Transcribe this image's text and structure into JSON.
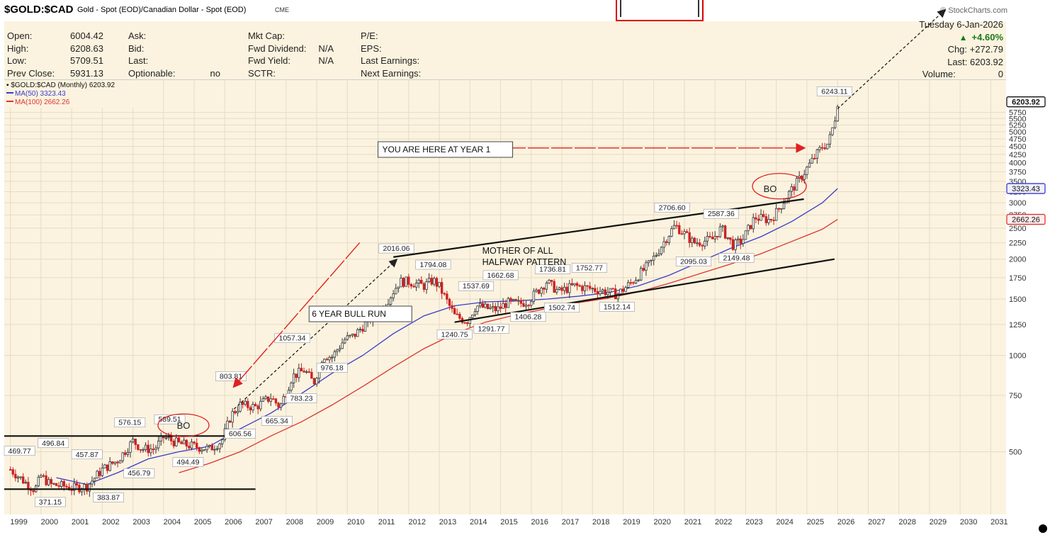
{
  "header": {
    "symbol": "$GOLD:$CAD",
    "description": "Gold - Spot (EOD)/Canadian Dollar - Spot (EOD)",
    "exchange": "CME",
    "brand": "© StockCharts.com"
  },
  "info_panel": {
    "col1_labels": [
      "Open:",
      "High:",
      "Low:",
      "Prev Close:"
    ],
    "col1_values": [
      "6004.42",
      "6208.63",
      "5709.51",
      "5931.13"
    ],
    "col2_labels": [
      "Ask:",
      "Bid:",
      "Last:",
      "Optionable:"
    ],
    "col2_values": [
      "",
      "",
      "",
      "no"
    ],
    "col3_labels": [
      "Mkt Cap:",
      "Fwd Dividend:",
      "Fwd Yield:",
      "SCTR:"
    ],
    "col3_values": [
      "",
      "N/A",
      "N/A",
      ""
    ],
    "col4_labels": [
      "P/E:",
      "EPS:",
      "Last Earnings:",
      "Next Earnings:"
    ],
    "date": "Tuesday  6-Jan-2026",
    "change_pct": "+4.60%",
    "chg": "Chg: +272.79",
    "last": "Last: 6203.92",
    "volume_label": "Volume:",
    "volume": "0"
  },
  "legend": {
    "main": "$GOLD:$CAD (Monthly) 6203.92",
    "ma50": "MA(50) 3323.43",
    "ma100": "MA(100) 2662.26"
  },
  "colors": {
    "up": "#333333",
    "down": "#cc2222",
    "ma50": "#3a3acc",
    "ma100": "#dd3333",
    "plot_bg": "#fbf3df",
    "accent_red": "#e02020"
  },
  "chart_data": {
    "type": "candlestick",
    "title": "$GOLD:$CAD (Monthly)",
    "scale": "log",
    "ylim": [
      325,
      7000
    ],
    "xlim": [
      1998.8,
      2031.5
    ],
    "y_ticks": [
      500,
      750,
      1000,
      1250,
      1500,
      1750,
      2000,
      2250,
      2500,
      2750,
      3000,
      3250,
      3500,
      3750,
      4000,
      4250,
      4500,
      4750,
      5000,
      5250,
      5500,
      5750
    ],
    "x_ticks": [
      "1999",
      "2000",
      "2001",
      "2002",
      "2003",
      "2004",
      "2005",
      "2006",
      "2007",
      "2008",
      "2009",
      "2010",
      "2011",
      "2012",
      "2013",
      "2014",
      "2015",
      "2016",
      "2017",
      "2018",
      "2019",
      "2020",
      "2021",
      "2022",
      "2023",
      "2024",
      "2025",
      "2026",
      "2027",
      "2028",
      "2029",
      "2030",
      "2031"
    ],
    "price_path": [
      [
        1999.0,
        440
      ],
      [
        1999.5,
        400
      ],
      [
        1999.8,
        380
      ],
      [
        2000.0,
        420
      ],
      [
        2000.3,
        395
      ],
      [
        2000.8,
        390
      ],
      [
        2001.0,
        385
      ],
      [
        2001.5,
        390
      ],
      [
        2002.0,
        440
      ],
      [
        2002.5,
        470
      ],
      [
        2003.0,
        540
      ],
      [
        2003.3,
        510
      ],
      [
        2003.7,
        510
      ],
      [
        2004.0,
        555
      ],
      [
        2004.5,
        530
      ],
      [
        2005.0,
        520
      ],
      [
        2005.5,
        510
      ],
      [
        2005.9,
        540
      ],
      [
        2006.2,
        650
      ],
      [
        2006.5,
        700
      ],
      [
        2007.0,
        690
      ],
      [
        2007.5,
        740
      ],
      [
        2007.8,
        690
      ],
      [
        2008.2,
        860
      ],
      [
        2008.6,
        900
      ],
      [
        2008.9,
        820
      ],
      [
        2009.2,
        1000
      ],
      [
        2009.5,
        990
      ],
      [
        2009.9,
        1120
      ],
      [
        2010.2,
        1150
      ],
      [
        2010.6,
        1260
      ],
      [
        2011.0,
        1370
      ],
      [
        2011.3,
        1480
      ],
      [
        2011.7,
        1700
      ],
      [
        2012.0,
        1700
      ],
      [
        2012.5,
        1650
      ],
      [
        2012.8,
        1720
      ],
      [
        2013.0,
        1640
      ],
      [
        2013.5,
        1330
      ],
      [
        2013.9,
        1280
      ],
      [
        2014.2,
        1430
      ],
      [
        2014.6,
        1400
      ],
      [
        2014.9,
        1390
      ],
      [
        2015.2,
        1460
      ],
      [
        2015.6,
        1450
      ],
      [
        2015.9,
        1480
      ],
      [
        2016.5,
        1700
      ],
      [
        2016.9,
        1580
      ],
      [
        2017.4,
        1650
      ],
      [
        2017.9,
        1620
      ],
      [
        2018.5,
        1580
      ],
      [
        2018.8,
        1550
      ],
      [
        2019.3,
        1700
      ],
      [
        2019.9,
        1950
      ],
      [
        2020.5,
        2400
      ],
      [
        2020.7,
        2550
      ],
      [
        2021.0,
        2400
      ],
      [
        2021.3,
        2250
      ],
      [
        2021.9,
        2300
      ],
      [
        2022.2,
        2500
      ],
      [
        2022.6,
        2200
      ],
      [
        2022.9,
        2300
      ],
      [
        2023.3,
        2700
      ],
      [
        2023.8,
        2650
      ],
      [
        2024.0,
        2800
      ],
      [
        2024.4,
        3200
      ],
      [
        2024.8,
        3600
      ],
      [
        2025.2,
        4100
      ],
      [
        2025.5,
        4500
      ],
      [
        2025.7,
        4600
      ],
      [
        2025.9,
        5400
      ],
      [
        2026.0,
        6203.92
      ]
    ],
    "ma50_path": [
      [
        2000.5,
        415
      ],
      [
        2001.5,
        395
      ],
      [
        2002.5,
        430
      ],
      [
        2003.5,
        475
      ],
      [
        2004.5,
        500
      ],
      [
        2005.5,
        520
      ],
      [
        2006.5,
        590
      ],
      [
        2007.5,
        660
      ],
      [
        2008.5,
        760
      ],
      [
        2009.5,
        880
      ],
      [
        2010.5,
        1000
      ],
      [
        2011.5,
        1170
      ],
      [
        2012.5,
        1330
      ],
      [
        2013.5,
        1430
      ],
      [
        2014.5,
        1470
      ],
      [
        2015.5,
        1480
      ],
      [
        2016.5,
        1500
      ],
      [
        2017.5,
        1530
      ],
      [
        2018.5,
        1570
      ],
      [
        2019.5,
        1650
      ],
      [
        2020.5,
        1780
      ],
      [
        2021.5,
        1960
      ],
      [
        2022.5,
        2160
      ],
      [
        2023.5,
        2350
      ],
      [
        2024.5,
        2620
      ],
      [
        2025.5,
        3000
      ],
      [
        2026.0,
        3323.43
      ]
    ],
    "ma100_path": [
      [
        2004.5,
        430
      ],
      [
        2005.5,
        460
      ],
      [
        2006.5,
        500
      ],
      [
        2007.5,
        560
      ],
      [
        2008.5,
        620
      ],
      [
        2009.5,
        700
      ],
      [
        2010.5,
        800
      ],
      [
        2011.5,
        920
      ],
      [
        2012.5,
        1050
      ],
      [
        2013.5,
        1170
      ],
      [
        2014.5,
        1270
      ],
      [
        2015.5,
        1340
      ],
      [
        2016.5,
        1400
      ],
      [
        2017.5,
        1460
      ],
      [
        2018.5,
        1510
      ],
      [
        2019.5,
        1580
      ],
      [
        2020.5,
        1680
      ],
      [
        2021.5,
        1800
      ],
      [
        2022.5,
        1930
      ],
      [
        2023.5,
        2080
      ],
      [
        2024.5,
        2270
      ],
      [
        2025.5,
        2480
      ],
      [
        2026.0,
        2662.26
      ]
    ],
    "price_labels": [
      {
        "x": 1999.3,
        "y": 469.77,
        "text": "469.77",
        "pos": "above"
      },
      {
        "x": 2000.4,
        "y": 496.84,
        "text": "496.84",
        "pos": "above"
      },
      {
        "x": 2000.3,
        "y": 371.15,
        "text": "371.15",
        "pos": "below"
      },
      {
        "x": 2001.5,
        "y": 457.87,
        "text": "457.87",
        "pos": "above"
      },
      {
        "x": 2002.2,
        "y": 383.87,
        "text": "383.87",
        "pos": "below"
      },
      {
        "x": 2002.9,
        "y": 576.15,
        "text": "576.15",
        "pos": "above"
      },
      {
        "x": 2003.2,
        "y": 456.79,
        "text": "456.79",
        "pos": "below"
      },
      {
        "x": 2004.2,
        "y": 589.51,
        "text": "589.51",
        "pos": "above"
      },
      {
        "x": 2004.8,
        "y": 494.49,
        "text": "494.49",
        "pos": "below"
      },
      {
        "x": 2006.2,
        "y": 803.81,
        "text": "803.81",
        "pos": "above"
      },
      {
        "x": 2006.5,
        "y": 606.56,
        "text": "606.56",
        "pos": "below"
      },
      {
        "x": 2007.7,
        "y": 665.34,
        "text": "665.34",
        "pos": "below"
      },
      {
        "x": 2008.2,
        "y": 1057.34,
        "text": "1057.34",
        "pos": "above"
      },
      {
        "x": 2008.5,
        "y": 783.23,
        "text": "783.23",
        "pos": "below"
      },
      {
        "x": 2009.5,
        "y": 976.18,
        "text": "976.18",
        "pos": "below"
      },
      {
        "x": 2011.6,
        "y": 2016.06,
        "text": "2016.06",
        "pos": "above"
      },
      {
        "x": 2012.8,
        "y": 1794.08,
        "text": "1794.08",
        "pos": "above"
      },
      {
        "x": 2013.5,
        "y": 1240.75,
        "text": "1240.75",
        "pos": "below"
      },
      {
        "x": 2014.2,
        "y": 1537.69,
        "text": "1537.69",
        "pos": "above"
      },
      {
        "x": 2014.7,
        "y": 1291.77,
        "text": "1291.77",
        "pos": "below"
      },
      {
        "x": 2015.0,
        "y": 1662.68,
        "text": "1662.68",
        "pos": "above"
      },
      {
        "x": 2015.9,
        "y": 1406.28,
        "text": "1406.28",
        "pos": "below"
      },
      {
        "x": 2016.7,
        "y": 1736.81,
        "text": "1736.81",
        "pos": "above"
      },
      {
        "x": 2017.0,
        "y": 1502.74,
        "text": "1502.74",
        "pos": "below"
      },
      {
        "x": 2017.9,
        "y": 1752.77,
        "text": "1752.77",
        "pos": "above"
      },
      {
        "x": 2018.8,
        "y": 1512.14,
        "text": "1512.14",
        "pos": "below"
      },
      {
        "x": 2020.6,
        "y": 2706.6,
        "text": "2706.60",
        "pos": "above"
      },
      {
        "x": 2021.3,
        "y": 2095.03,
        "text": "2095.03",
        "pos": "below"
      },
      {
        "x": 2022.2,
        "y": 2587.36,
        "text": "2587.36",
        "pos": "above"
      },
      {
        "x": 2022.7,
        "y": 2149.48,
        "text": "2149.48",
        "pos": "below"
      },
      {
        "x": 2025.9,
        "y": 6243.11,
        "text": "6243.11",
        "pos": "above"
      }
    ],
    "annotations": {
      "you_are_here": "YOU ARE HERE AT YEAR 1",
      "bull_run": "6 YEAR BULL RUN",
      "pattern_line1": "MOTHER OF ALL",
      "pattern_line2": "HALFWAY PATTERN",
      "bo1": "BO",
      "bo2": "BO"
    },
    "current_tags": [
      "6203.92",
      "3323.43",
      "2662.26"
    ],
    "trendlines": [
      {
        "kind": "solid",
        "from": [
          1998.8,
          560
        ],
        "to": [
          2006.5,
          560
        ]
      },
      {
        "kind": "solid",
        "from": [
          1998.8,
          382
        ],
        "to": [
          2007.0,
          382
        ]
      },
      {
        "kind": "solid",
        "from": [
          2011.5,
          2030
        ],
        "to": [
          2024.9,
          3080
        ]
      },
      {
        "kind": "solid",
        "from": [
          2013.5,
          1270
        ],
        "to": [
          2025.9,
          2000
        ]
      },
      {
        "kind": "dashed",
        "from": [
          2006.3,
          680
        ],
        "to": [
          2011.6,
          1990
        ]
      },
      {
        "kind": "dashed",
        "from": [
          2026.0,
          5900
        ],
        "to": [
          2029.5,
          12000
        ]
      }
    ]
  }
}
